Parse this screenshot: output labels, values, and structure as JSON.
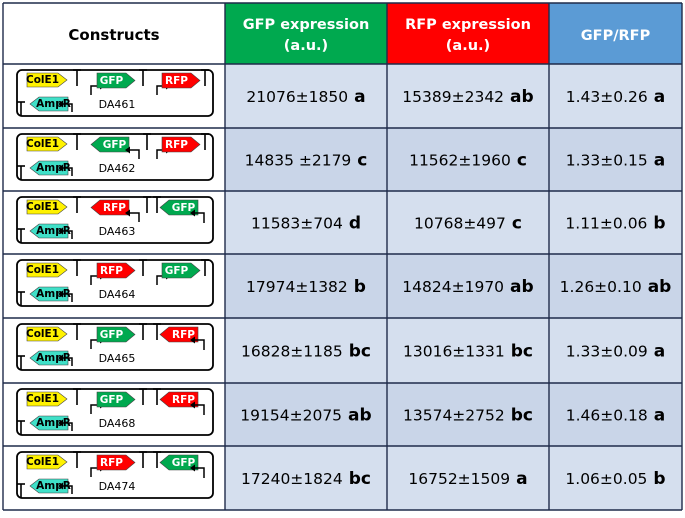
{
  "header": {
    "constructs": "Constructs",
    "gfp": [
      "GFP expression",
      "(a.u.)"
    ],
    "rfp": [
      "RFP expression",
      "(a.u.)"
    ],
    "ratio": "GFP/RFP"
  },
  "colors": {
    "header_gfp": "#00A94F",
    "header_rfp": "#FF0000",
    "header_ratio": "#5B9BD5",
    "cell_light": "#D5DFEE",
    "cell_dark": "#C9D5E8",
    "grid": "#1F2B4A",
    "gfp_gene": "#00A94F",
    "rfp_gene": "#FF0000",
    "cole1": "#FFF200",
    "ampr": "#3FE0C8"
  },
  "part_labels": {
    "cole1": "ColE1",
    "ampr": "AmpR",
    "gfp": "GFP",
    "rfp": "RFP"
  },
  "rows": [
    {
      "name": "DA461",
      "layout": "gfp-fwd-rfp-fwd",
      "gfp": "21076±1850",
      "gfp_sig": "a",
      "rfp": "15389±2342",
      "rfp_sig": "ab",
      "ratio": "1.43±0.26",
      "ratio_sig": "a"
    },
    {
      "name": "DA462",
      "layout": "gfp-rev-rfp-fwd",
      "gfp": "14835 ±2179",
      "gfp_sig": "c",
      "rfp": "11562±1960",
      "rfp_sig": "c",
      "ratio": "1.33±0.15",
      "ratio_sig": "a"
    },
    {
      "name": "DA463",
      "layout": "rfp-rev-gfp-rev",
      "gfp": "11583±704",
      "gfp_sig": "d",
      "rfp": "10768±497",
      "rfp_sig": "c",
      "ratio": "1.11±0.06",
      "ratio_sig": "b"
    },
    {
      "name": "DA464",
      "layout": "rfp-fwd-gfp-fwd",
      "gfp": "17974±1382",
      "gfp_sig": "b",
      "rfp": "14824±1970",
      "rfp_sig": "ab",
      "ratio": "1.26±0.10",
      "ratio_sig": "ab"
    },
    {
      "name": "DA465",
      "layout": "gfp-fwd-rfp-rev",
      "gfp": "16828±1185",
      "gfp_sig": "bc",
      "rfp": "13016±1331",
      "rfp_sig": "bc",
      "ratio": "1.33±0.09",
      "ratio_sig": "a"
    },
    {
      "name": "DA468",
      "layout": "gfp-fwd-rfp-rev",
      "gfp": "19154±2075",
      "gfp_sig": "ab",
      "rfp": "13574±2752",
      "rfp_sig": "bc",
      "ratio": "1.46±0.18",
      "ratio_sig": "a"
    },
    {
      "name": "DA474",
      "layout": "rfp-fwd-gfp-rev",
      "gfp": "17240±1824",
      "gfp_sig": "bc",
      "rfp": "16752±1509",
      "rfp_sig": "a",
      "ratio": "1.06±0.05",
      "ratio_sig": "b"
    }
  ]
}
